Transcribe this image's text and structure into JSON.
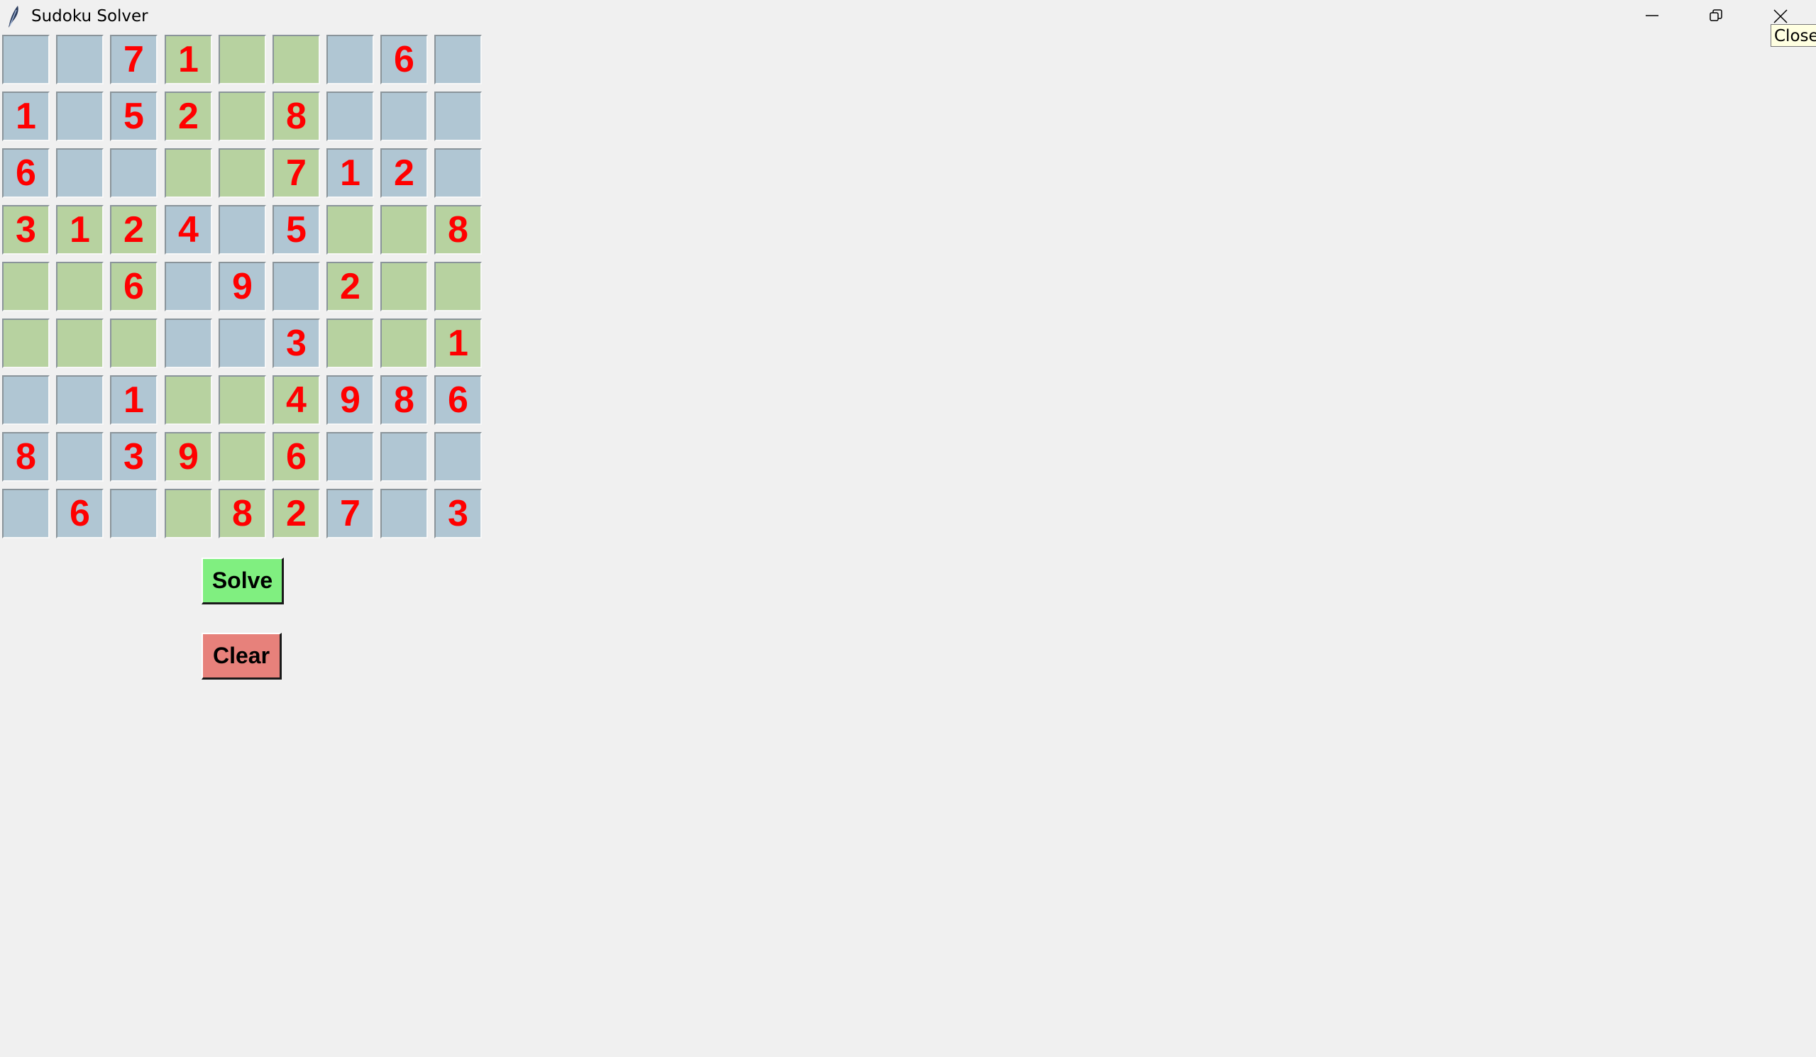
{
  "window": {
    "title": "Sudoku Solver",
    "tooltip": "Close"
  },
  "colors": {
    "box_light": "#b7d2a0",
    "box_dark": "#b0c6d3",
    "digit": "#ff0000",
    "solve_button": "#80ef80",
    "clear_button": "#e7817b",
    "background": "#f0f0f0"
  },
  "grid": {
    "rows": [
      [
        "",
        "",
        "7",
        "1",
        "",
        "",
        "",
        "6",
        ""
      ],
      [
        "1",
        "",
        "5",
        "2",
        "",
        "8",
        "",
        "",
        ""
      ],
      [
        "6",
        "",
        "",
        "",
        "",
        "7",
        "1",
        "2",
        ""
      ],
      [
        "3",
        "1",
        "2",
        "4",
        "",
        "5",
        "",
        "",
        "8"
      ],
      [
        "",
        "",
        "6",
        "",
        "9",
        "",
        "2",
        "",
        ""
      ],
      [
        "",
        "",
        "",
        "",
        "",
        "3",
        "",
        "",
        "1"
      ],
      [
        "",
        "",
        "1",
        "",
        "",
        "4",
        "9",
        "8",
        "6"
      ],
      [
        "8",
        "",
        "3",
        "9",
        "",
        "6",
        "",
        "",
        ""
      ],
      [
        "",
        "6",
        "",
        "",
        "8",
        "2",
        "7",
        "",
        "3"
      ]
    ]
  },
  "buttons": {
    "solve_label": "Solve",
    "clear_label": "Clear"
  }
}
